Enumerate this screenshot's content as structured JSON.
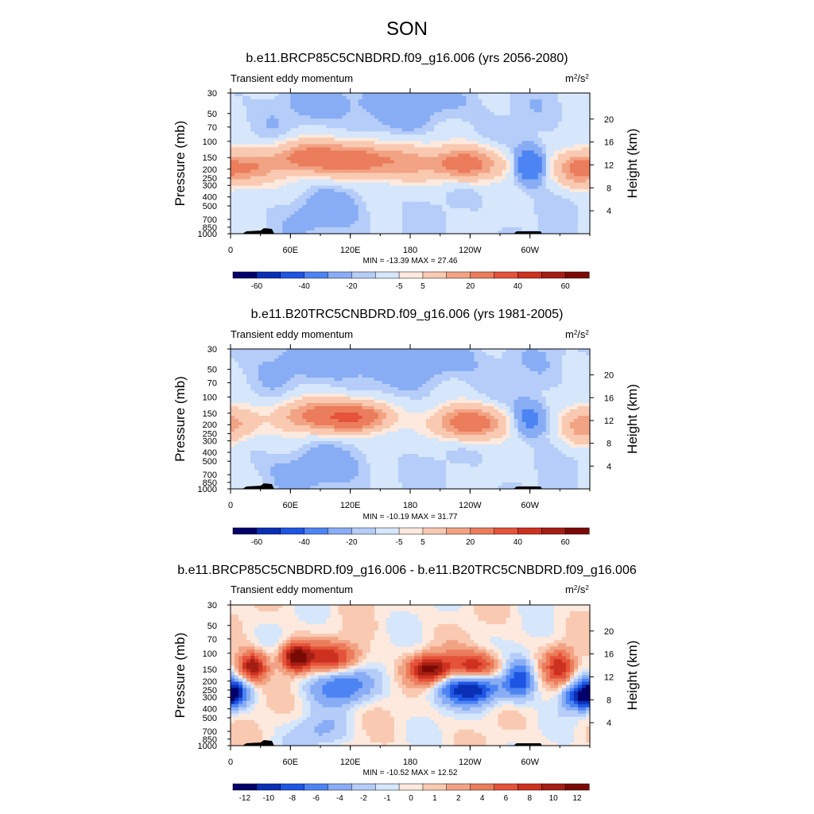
{
  "figure_title": "SON",
  "colorbar_colors": [
    "#03006b",
    "#0a2fb4",
    "#1f55e3",
    "#4d84f3",
    "#88adf5",
    "#b5cdf8",
    "#d6e6fb",
    "#fde9dd",
    "#f9c9b1",
    "#f2a384",
    "#eb7d5c",
    "#e5533a",
    "#cd3120",
    "#a41e13",
    "#7a0a05"
  ],
  "chart_data": [
    {
      "type": "heatmap",
      "title": "b.e11.BRCP85C5CNBDRD.f09_g16.006 (yrs 2056-2080)",
      "subtitle": "Transient eddy momentum",
      "units_base": "m",
      "units_sup1": "2",
      "units_mid": "/s",
      "units_sup2": "2",
      "ylabel": "Pressure (mb)",
      "ylabel_right": "Height (km)",
      "pressure_ticks": [
        "30",
        "50",
        "70",
        "100",
        "150",
        "200",
        "250",
        "300",
        "400",
        "500",
        "700",
        "850",
        "1000"
      ],
      "height_ticks": [
        "20",
        "16",
        "12",
        "8",
        "4"
      ],
      "lon_ticks": [
        "0",
        "60E",
        "120E",
        "180",
        "120W",
        "60W"
      ],
      "stats": "MIN = -13.39  MAX =  27.46",
      "min": -13.39,
      "max": 27.46,
      "colorbar_labels": [
        "-60",
        "-40",
        "-20",
        "-5",
        "5",
        "20",
        "40",
        "60"
      ],
      "features": [
        {
          "lon": 20,
          "p": 190,
          "amp": 18,
          "lon_w": 18,
          "p_w": 0.28
        },
        {
          "lon": 75,
          "p": 150,
          "amp": 22,
          "lon_w": 22,
          "p_w": 0.26
        },
        {
          "lon": 125,
          "p": 160,
          "amp": 27,
          "lon_w": 24,
          "p_w": 0.26
        },
        {
          "lon": 175,
          "p": 170,
          "amp": 12,
          "lon_w": 20,
          "p_w": 0.3
        },
        {
          "lon": 235,
          "p": 175,
          "amp": 25,
          "lon_w": 24,
          "p_w": 0.26
        },
        {
          "lon": 300,
          "p": 180,
          "amp": -13,
          "lon_w": 10,
          "p_w": 0.3
        },
        {
          "lon": 348,
          "p": 200,
          "amp": 20,
          "lon_w": 14,
          "p_w": 0.28
        },
        {
          "lon": 150,
          "p": 40,
          "amp": -3,
          "lon_w": 70,
          "p_w": 0.4
        },
        {
          "lon": 100,
          "p": 600,
          "amp": -3,
          "lon_w": 30,
          "p_w": 0.35
        }
      ]
    },
    {
      "type": "heatmap",
      "title": "b.e11.B20TRC5CNBDRD.f09_g16.006 (yrs 1981-2005)",
      "subtitle": "Transient eddy momentum",
      "units_base": "m",
      "units_sup1": "2",
      "units_mid": "/s",
      "units_sup2": "2",
      "ylabel": "Pressure (mb)",
      "ylabel_right": "Height (km)",
      "pressure_ticks": [
        "30",
        "50",
        "70",
        "100",
        "150",
        "200",
        "250",
        "300",
        "400",
        "500",
        "700",
        "850",
        "1000"
      ],
      "height_ticks": [
        "20",
        "16",
        "12",
        "8",
        "4"
      ],
      "lon_ticks": [
        "0",
        "60E",
        "120E",
        "180",
        "120W",
        "60W"
      ],
      "stats": "MIN = -10.19  MAX =  31.77",
      "min": -10.19,
      "max": 31.77,
      "colorbar_labels": [
        "-60",
        "-40",
        "-20",
        "-5",
        "5",
        "20",
        "40",
        "60"
      ],
      "features": [
        {
          "lon": 10,
          "p": 190,
          "amp": 10,
          "lon_w": 14,
          "p_w": 0.28
        },
        {
          "lon": 80,
          "p": 160,
          "amp": 18,
          "lon_w": 24,
          "p_w": 0.26
        },
        {
          "lon": 125,
          "p": 165,
          "amp": 31,
          "lon_w": 22,
          "p_w": 0.24
        },
        {
          "lon": 240,
          "p": 190,
          "amp": 28,
          "lon_w": 22,
          "p_w": 0.26
        },
        {
          "lon": 300,
          "p": 170,
          "amp": -8,
          "lon_w": 12,
          "p_w": 0.3
        },
        {
          "lon": 350,
          "p": 210,
          "amp": 14,
          "lon_w": 12,
          "p_w": 0.3
        },
        {
          "lon": 150,
          "p": 40,
          "amp": -4,
          "lon_w": 80,
          "p_w": 0.4
        },
        {
          "lon": 90,
          "p": 600,
          "amp": -3,
          "lon_w": 40,
          "p_w": 0.35
        }
      ]
    },
    {
      "type": "heatmap",
      "title": "b.e11.BRCP85C5CNBDRD.f09_g16.006 - b.e11.B20TRC5CNBDRD.f09_g16.006",
      "subtitle": "Transient eddy momentum",
      "units_base": "m",
      "units_sup1": "2",
      "units_mid": "/s",
      "units_sup2": "2",
      "ylabel": "Pressure (mb)",
      "ylabel_right": "Height (km)",
      "pressure_ticks": [
        "30",
        "50",
        "70",
        "100",
        "150",
        "200",
        "250",
        "300",
        "400",
        "500",
        "700",
        "850",
        "1000"
      ],
      "height_ticks": [
        "20",
        "16",
        "12",
        "8",
        "4"
      ],
      "lon_ticks": [
        "0",
        "60E",
        "120E",
        "180",
        "120W",
        "60W"
      ],
      "stats": "MIN = -10.52  MAX =  12.52",
      "min": -10.52,
      "max": 12.52,
      "colorbar_labels": [
        "-12",
        "-10",
        "-8",
        "-6",
        "-4",
        "-2",
        "-1",
        "0",
        "1",
        "2",
        "4",
        "6",
        "8",
        "10",
        "12"
      ],
      "features": [
        {
          "lon": 22,
          "p": 140,
          "amp": 11,
          "lon_w": 10,
          "p_w": 0.25
        },
        {
          "lon": 5,
          "p": 260,
          "amp": -7,
          "lon_w": 10,
          "p_w": 0.25
        },
        {
          "lon": 65,
          "p": 110,
          "amp": 12,
          "lon_w": 10,
          "p_w": 0.25
        },
        {
          "lon": 100,
          "p": 110,
          "amp": 8,
          "lon_w": 20,
          "p_w": 0.25
        },
        {
          "lon": 110,
          "p": 230,
          "amp": -7,
          "lon_w": 22,
          "p_w": 0.3
        },
        {
          "lon": 200,
          "p": 150,
          "amp": 12,
          "lon_w": 14,
          "p_w": 0.25
        },
        {
          "lon": 245,
          "p": 140,
          "amp": 9,
          "lon_w": 18,
          "p_w": 0.25
        },
        {
          "lon": 240,
          "p": 240,
          "amp": -10.5,
          "lon_w": 24,
          "p_w": 0.28
        },
        {
          "lon": 290,
          "p": 190,
          "amp": -8,
          "lon_w": 10,
          "p_w": 0.35
        },
        {
          "lon": 330,
          "p": 140,
          "amp": 8,
          "lon_w": 10,
          "p_w": 0.3
        },
        {
          "lon": 350,
          "p": 290,
          "amp": -10,
          "lon_w": 12,
          "p_w": 0.25
        },
        {
          "lon": 90,
          "p": 700,
          "amp": -3,
          "lon_w": 20,
          "p_w": 0.3
        }
      ]
    }
  ]
}
